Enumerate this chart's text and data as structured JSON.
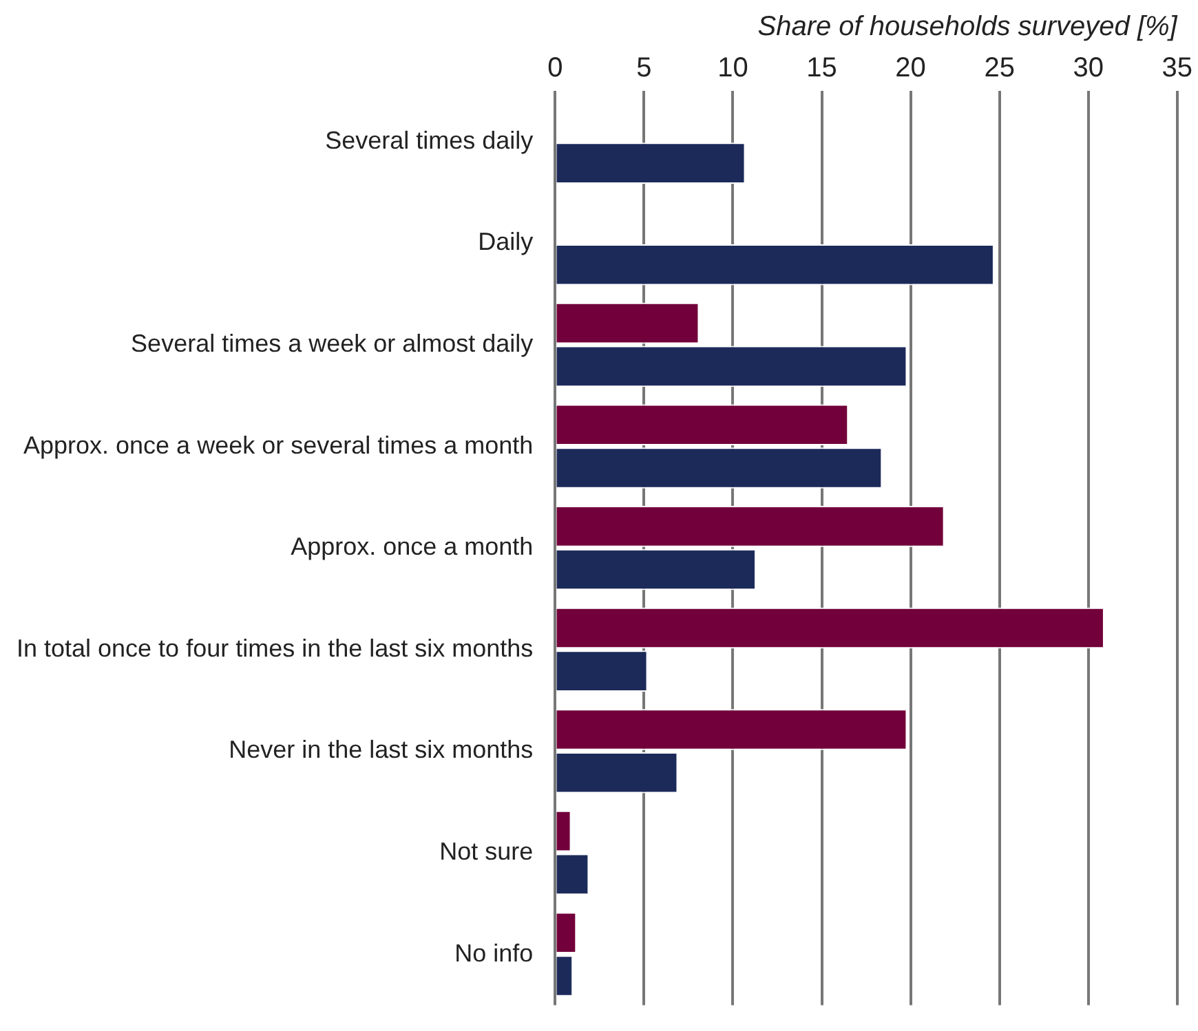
{
  "chart_data": {
    "type": "bar",
    "orientation": "horizontal",
    "xlabel": "Share of households surveyed [%]",
    "categories": [
      "Several times daily",
      "Daily",
      "Several times a week or almost daily",
      "Approx. once a week or several times a month",
      "Approx. once a month",
      "In total once to four times in the last six months",
      "Never in the last six months",
      "Not sure",
      "No info"
    ],
    "series": [
      {
        "color": "#72003a",
        "values": [
          null,
          null,
          8.1,
          16.5,
          21.9,
          30.9,
          19.8,
          0.9,
          1.2
        ]
      },
      {
        "color": "#1c2a5a",
        "values": [
          10.7,
          24.7,
          19.8,
          18.4,
          11.3,
          5.2,
          6.9,
          1.9,
          1.0
        ]
      }
    ],
    "xlim": [
      0,
      35
    ],
    "xticks": [
      0,
      5,
      10,
      15,
      20,
      25,
      30,
      35
    ],
    "grid": "x",
    "legend": false
  }
}
